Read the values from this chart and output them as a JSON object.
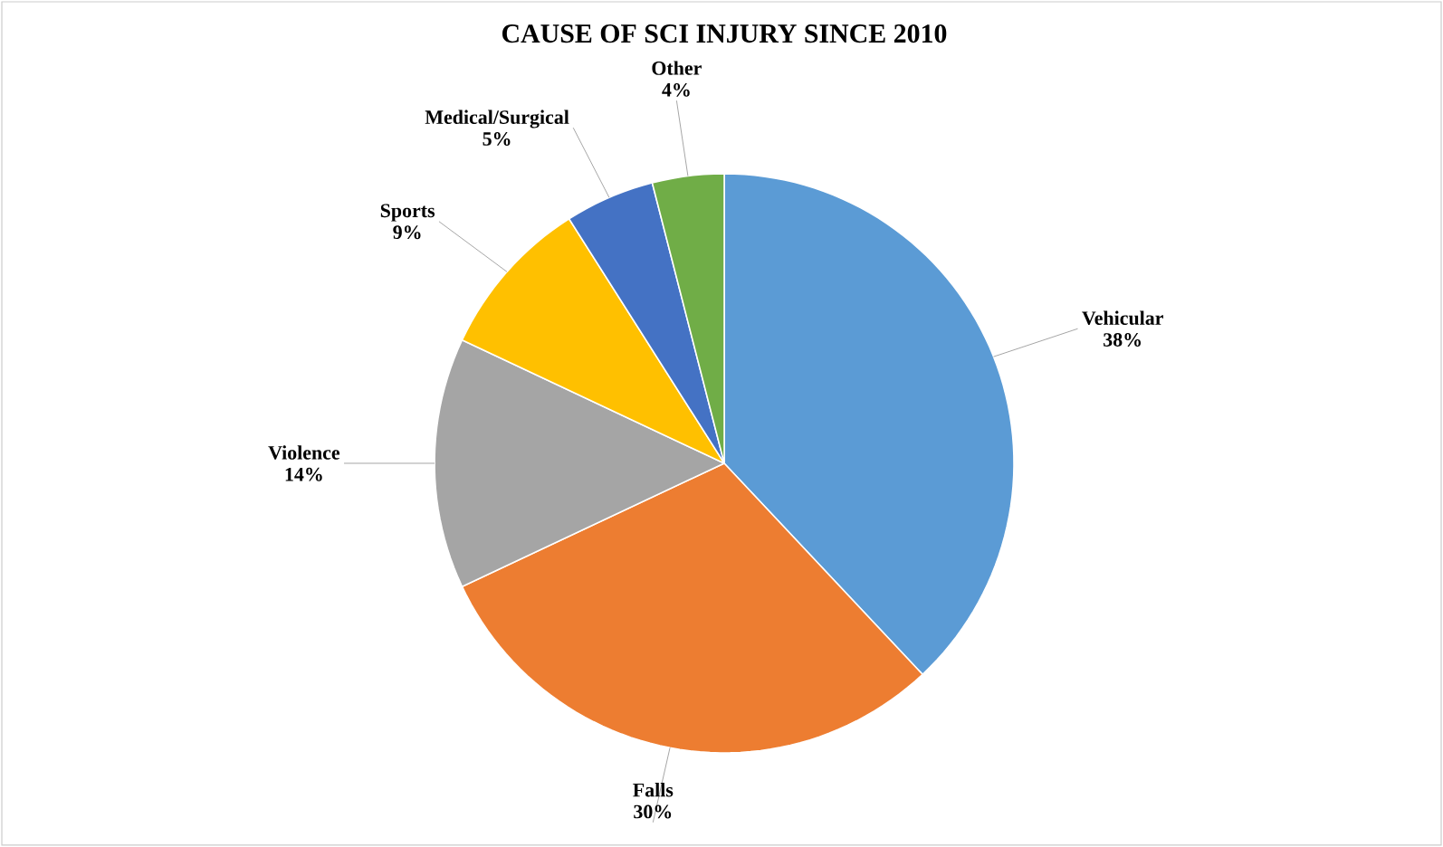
{
  "chart_data": {
    "type": "pie",
    "title": "CAUSE OF SCI INJURY SINCE 2010",
    "categories": [
      "Vehicular",
      "Falls",
      "Violence",
      "Sports",
      "Medical/Surgical",
      "Other"
    ],
    "values": [
      38,
      30,
      14,
      9,
      5,
      4
    ],
    "value_labels": [
      "38%",
      "30%",
      "14%",
      "9%",
      "5%",
      "4%"
    ],
    "colors": [
      "#5b9bd5",
      "#ed7d31",
      "#a5a5a5",
      "#ffc000",
      "#4472c4",
      "#70ad47"
    ]
  }
}
